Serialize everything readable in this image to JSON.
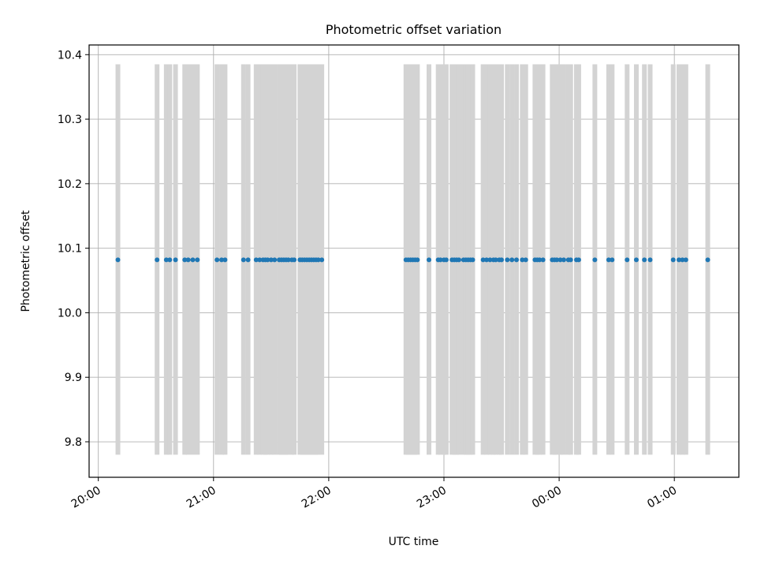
{
  "chart_data": {
    "type": "scatter",
    "title": "Photometric offset variation",
    "xlabel": "UTC time",
    "ylabel": "Photometric offset",
    "x_tick_labels": [
      "20:00",
      "21:00",
      "22:00",
      "23:00",
      "00:00",
      "01:00"
    ],
    "y_tick_labels": [
      "9.8",
      "9.9",
      "10.0",
      "10.1",
      "10.2",
      "10.3",
      "10.4"
    ],
    "y_ticks": [
      9.8,
      9.9,
      10.0,
      10.1,
      10.2,
      10.3,
      10.4
    ],
    "x_ticks_hours": [
      20,
      21,
      22,
      23,
      24,
      25
    ],
    "xlim_hours": [
      19.92,
      25.56
    ],
    "ylim": [
      9.745,
      10.415
    ],
    "grid": true,
    "errorbar": {
      "low": 9.78,
      "high": 10.385,
      "color": "#d3d3d3"
    },
    "marker_color": "#1f77b4",
    "y_value": 10.082,
    "x_hours": [
      20.17,
      20.51,
      20.59,
      20.62,
      20.67,
      20.75,
      20.78,
      20.82,
      20.86,
      21.03,
      21.07,
      21.1,
      21.26,
      21.3,
      21.37,
      21.4,
      21.43,
      21.45,
      21.47,
      21.5,
      21.53,
      21.57,
      21.59,
      21.61,
      21.63,
      21.65,
      21.68,
      21.7,
      21.75,
      21.77,
      21.79,
      21.81,
      21.83,
      21.85,
      21.87,
      21.89,
      21.91,
      21.94,
      22.67,
      22.69,
      22.71,
      22.73,
      22.75,
      22.77,
      22.87,
      22.95,
      22.97,
      23.0,
      23.02,
      23.07,
      23.09,
      23.11,
      23.13,
      23.17,
      23.19,
      23.21,
      23.23,
      23.25,
      23.34,
      23.37,
      23.4,
      23.43,
      23.45,
      23.48,
      23.5,
      23.55,
      23.59,
      23.63,
      23.68,
      23.71,
      23.79,
      23.81,
      23.83,
      23.86,
      23.94,
      23.96,
      23.98,
      24.01,
      24.04,
      24.08,
      24.1,
      24.15,
      24.17,
      24.31,
      24.43,
      24.46,
      24.59,
      24.67,
      24.74,
      24.79,
      24.99,
      25.04,
      25.07,
      25.1,
      25.29
    ]
  }
}
